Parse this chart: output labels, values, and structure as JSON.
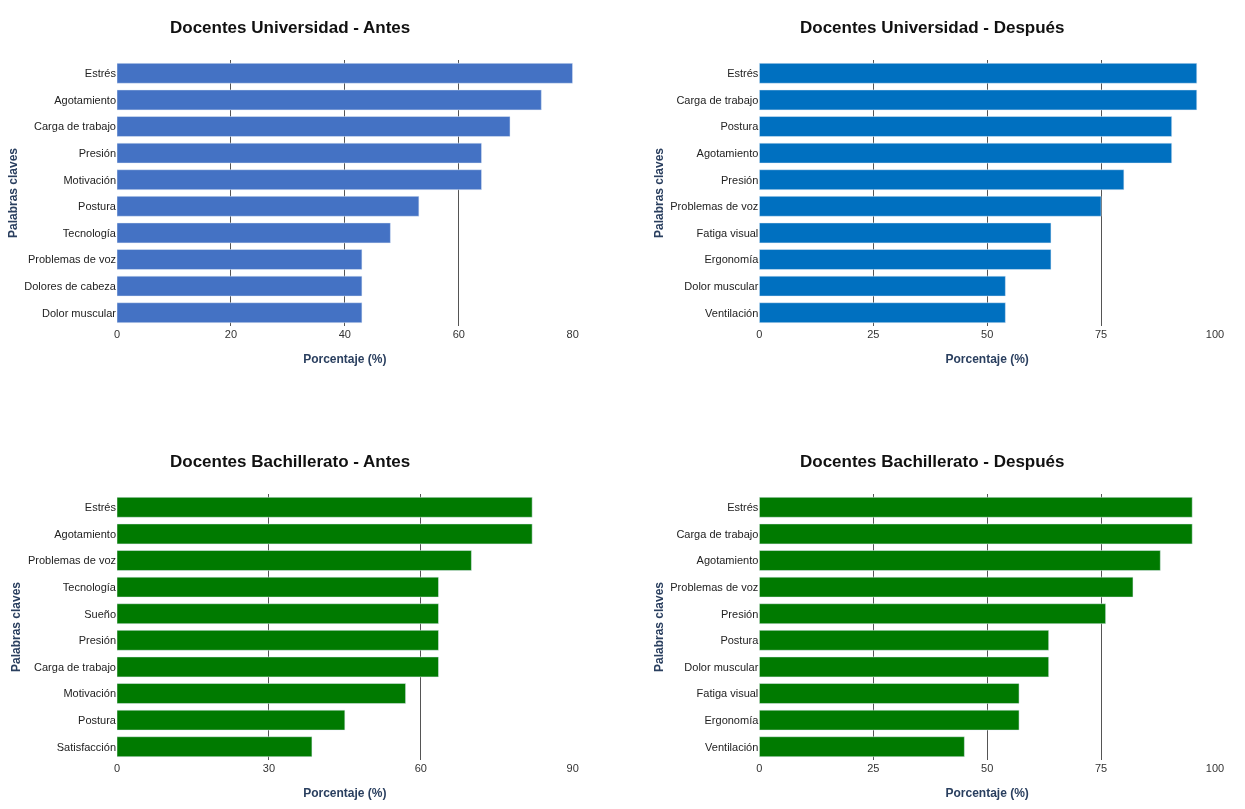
{
  "chart_data": [
    {
      "type": "bar",
      "orientation": "horizontal",
      "title": "Docentes Universidad - Antes",
      "xlabel": "Porcentaje (%)",
      "ylabel": "Palabras claves",
      "categories": [
        "Estrés",
        "Agotamiento",
        "Carga de trabajo",
        "Presión",
        "Motivación",
        "Postura",
        "Tecnología",
        "Problemas de voz",
        "Dolores de cabeza",
        "Dolor muscular"
      ],
      "values": [
        80,
        74.5,
        69,
        64,
        64,
        53,
        48,
        43,
        43,
        43
      ],
      "color": "#4472c4",
      "xlim": [
        0,
        80
      ],
      "xticks": [
        0,
        20,
        40,
        60,
        80
      ],
      "grid": "x"
    },
    {
      "type": "bar",
      "orientation": "horizontal",
      "title": "Docentes Universidad - Después",
      "xlabel": "Porcentaje (%)",
      "ylabel": "Palabras claves",
      "categories": [
        "Estrés",
        "Carga de trabajo",
        "Postura",
        "Agotamiento",
        "Presión",
        "Problemas de voz",
        "Fatiga visual",
        "Ergonomía",
        "Dolor muscular",
        "Ventilación"
      ],
      "values": [
        96,
        96,
        90.5,
        90.5,
        80,
        75,
        64,
        64,
        54,
        54
      ],
      "color": "#0070c0",
      "xlim": [
        0,
        100
      ],
      "xticks": [
        0,
        25,
        50,
        75,
        100
      ],
      "grid": "x"
    },
    {
      "type": "bar",
      "orientation": "horizontal",
      "title": "Docentes Bachillerato - Antes",
      "xlabel": "Porcentaje (%)",
      "ylabel": "Palabras claves",
      "categories": [
        "Estrés",
        "Agotamiento",
        "Problemas de voz",
        "Tecnología",
        "Sueño",
        "Presión",
        "Carga de trabajo",
        "Motivación",
        "Postura",
        "Satisfacción"
      ],
      "values": [
        82,
        82,
        70,
        63.5,
        63.5,
        63.5,
        63.5,
        57,
        45,
        38.5
      ],
      "color": "#007a00",
      "xlim": [
        0,
        90
      ],
      "xticks": [
        0,
        30,
        60,
        90
      ],
      "grid": "x"
    },
    {
      "type": "bar",
      "orientation": "horizontal",
      "title": "Docentes Bachillerato - Después",
      "xlabel": "Porcentaje (%)",
      "ylabel": "Palabras claves",
      "categories": [
        "Estrés",
        "Carga de trabajo",
        "Agotamiento",
        "Problemas de voz",
        "Presión",
        "Postura",
        "Dolor muscular",
        "Fatiga visual",
        "Ergonomía",
        "Ventilación"
      ],
      "values": [
        95,
        95,
        88,
        82,
        76,
        63.5,
        63.5,
        57,
        57,
        45
      ],
      "color": "#007a00",
      "xlim": [
        0,
        100
      ],
      "xticks": [
        0,
        25,
        50,
        75,
        100
      ],
      "grid": "x"
    }
  ]
}
